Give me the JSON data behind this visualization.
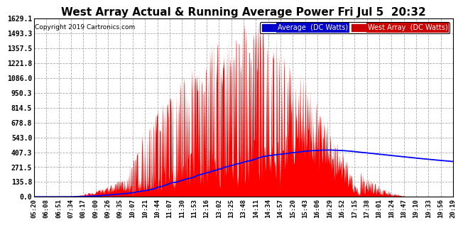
{
  "title": "West Array Actual & Running Average Power Fri Jul 5  20:32",
  "copyright": "Copyright 2019 Cartronics.com",
  "legend_labels": [
    "Average  (DC Watts)",
    "West Array  (DC Watts)"
  ],
  "legend_colors": [
    "#0000cc",
    "#cc0000"
  ],
  "yticks": [
    0.0,
    135.8,
    271.5,
    407.3,
    543.0,
    678.8,
    814.5,
    950.3,
    1086.0,
    1221.8,
    1357.5,
    1493.3,
    1629.1
  ],
  "ymax": 1629.1,
  "background_color": "#ffffff",
  "plot_bg_color": "#ffffff",
  "grid_color": "#aaaaaa",
  "bar_color": "#ff0000",
  "avg_color": "#0000ff",
  "title_fontsize": 11,
  "xtick_labels": [
    "05:20",
    "06:08",
    "06:51",
    "07:34",
    "08:17",
    "09:00",
    "09:26",
    "09:35",
    "10:07",
    "10:21",
    "10:44",
    "11:07",
    "11:30",
    "11:53",
    "12:16",
    "13:02",
    "13:25",
    "13:48",
    "14:11",
    "14:34",
    "14:57",
    "15:20",
    "15:43",
    "16:06",
    "16:29",
    "16:52",
    "17:15",
    "17:38",
    "18:01",
    "18:24",
    "18:47",
    "19:10",
    "19:33",
    "19:56",
    "20:19"
  ]
}
